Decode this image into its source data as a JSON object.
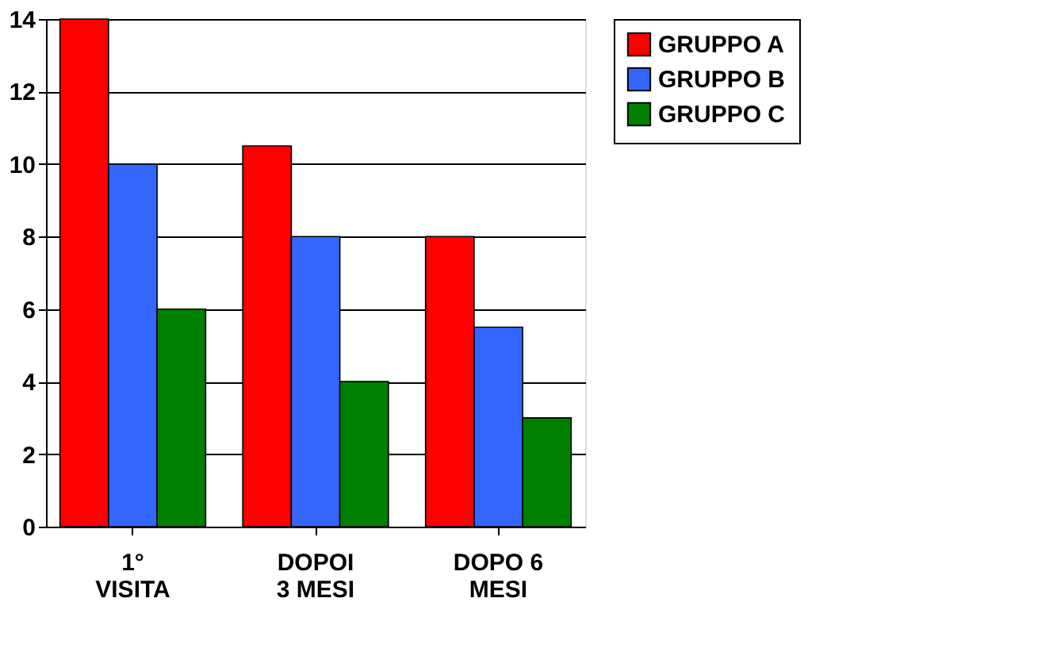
{
  "chart_data": {
    "type": "bar",
    "categories": [
      "1°\nVISITA",
      "DOPOI\n3 MESI",
      "DOPO 6\nMESI"
    ],
    "series": [
      {
        "name": "GRUPPO A",
        "color": "#ff0000",
        "values": [
          14,
          10.5,
          8
        ]
      },
      {
        "name": "GRUPPO B",
        "color": "#3366ff",
        "values": [
          10,
          8,
          5.5
        ]
      },
      {
        "name": "GRUPPO C",
        "color": "#008000",
        "values": [
          6,
          4,
          3
        ]
      }
    ],
    "ylim": [
      0,
      14
    ],
    "yticks": [
      0,
      2,
      4,
      6,
      8,
      10,
      12,
      14
    ],
    "grid": "y",
    "legend": "right"
  }
}
